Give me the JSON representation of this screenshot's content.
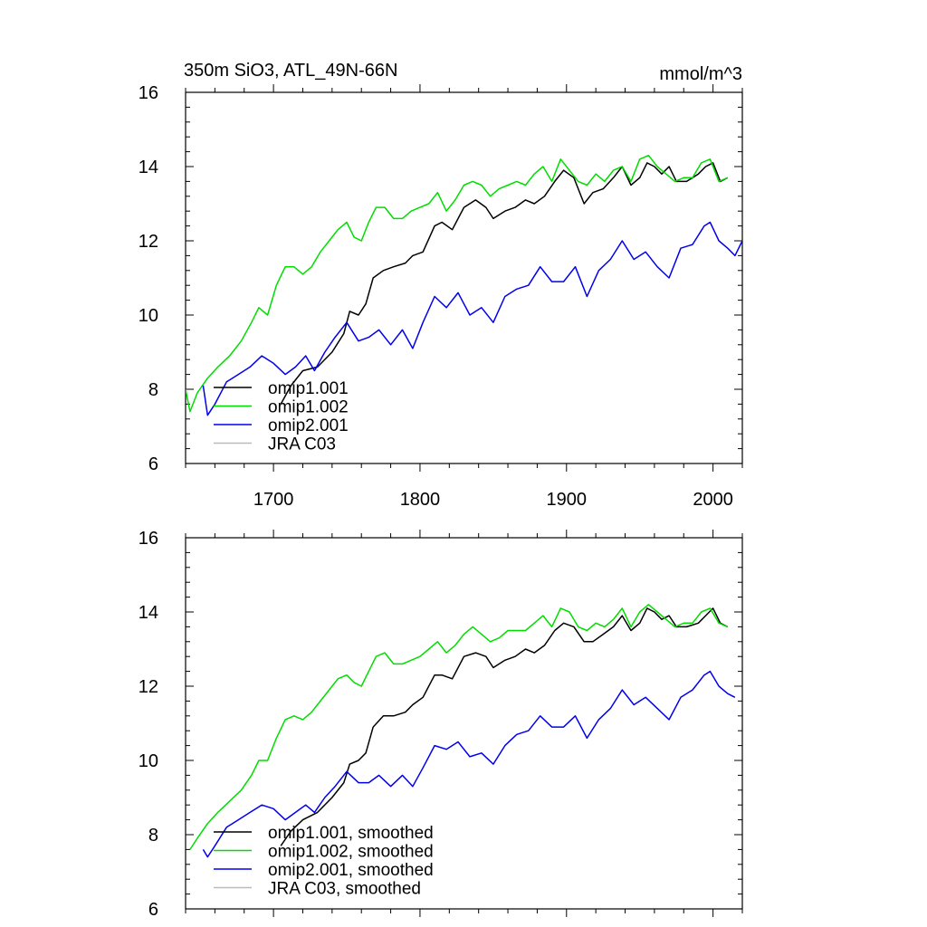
{
  "chart_data": [
    {
      "type": "line",
      "title": "350m SiO3, ATL_49N-66N",
      "units": "mmol/m^3",
      "xlim": [
        1640,
        2020
      ],
      "ylim": [
        6,
        16
      ],
      "x_ticks": [
        1700,
        1800,
        1900,
        2000
      ],
      "y_ticks": [
        6,
        8,
        10,
        12,
        14,
        16
      ],
      "legend_position": "bottom-left",
      "series": [
        {
          "name": "omip1.001",
          "color": "#000000",
          "x": [
            1705,
            1712,
            1720,
            1730,
            1740,
            1748,
            1752,
            1758,
            1763,
            1768,
            1775,
            1782,
            1790,
            1795,
            1802,
            1810,
            1815,
            1822,
            1830,
            1838,
            1845,
            1850,
            1858,
            1865,
            1872,
            1878,
            1885,
            1892,
            1898,
            1905,
            1912,
            1918,
            1925,
            1932,
            1938,
            1944,
            1950,
            1955,
            1960,
            1965,
            1970,
            1975,
            1982,
            1990,
            1995,
            2000,
            2005,
            2010
          ],
          "y": [
            7.6,
            8.1,
            8.5,
            8.6,
            9.0,
            9.5,
            10.1,
            10.0,
            10.3,
            11.0,
            11.2,
            11.3,
            11.4,
            11.6,
            11.7,
            12.4,
            12.5,
            12.3,
            12.9,
            13.1,
            12.9,
            12.6,
            12.8,
            12.9,
            13.1,
            13.0,
            13.2,
            13.6,
            13.9,
            13.7,
            13.0,
            13.3,
            13.4,
            13.7,
            14.0,
            13.5,
            13.7,
            14.1,
            14.0,
            13.8,
            14.0,
            13.6,
            13.6,
            13.8,
            14.0,
            14.1,
            13.6,
            13.7
          ]
        },
        {
          "name": "omip1.002",
          "color": "#00dd00",
          "x": [
            1640,
            1643,
            1648,
            1655,
            1662,
            1670,
            1678,
            1685,
            1690,
            1696,
            1702,
            1708,
            1714,
            1720,
            1726,
            1732,
            1738,
            1744,
            1750,
            1755,
            1760,
            1765,
            1770,
            1776,
            1782,
            1788,
            1794,
            1800,
            1806,
            1812,
            1818,
            1824,
            1830,
            1836,
            1842,
            1848,
            1854,
            1860,
            1866,
            1872,
            1878,
            1884,
            1890,
            1896,
            1902,
            1908,
            1914,
            1920,
            1926,
            1932,
            1938,
            1944,
            1950,
            1956,
            1962,
            1968,
            1974,
            1980,
            1986,
            1992,
            1998,
            2004,
            2010
          ],
          "y": [
            8.0,
            7.4,
            7.9,
            8.3,
            8.6,
            8.9,
            9.3,
            9.8,
            10.2,
            10.0,
            10.8,
            11.3,
            11.3,
            11.1,
            11.3,
            11.7,
            12.0,
            12.3,
            12.5,
            12.1,
            12.0,
            12.5,
            12.9,
            12.9,
            12.6,
            12.6,
            12.8,
            12.9,
            13.0,
            13.3,
            12.8,
            13.1,
            13.5,
            13.6,
            13.5,
            13.2,
            13.4,
            13.5,
            13.6,
            13.5,
            13.8,
            14.0,
            13.6,
            14.2,
            13.9,
            13.6,
            13.5,
            13.8,
            13.6,
            13.9,
            14.0,
            13.6,
            14.2,
            14.3,
            14.0,
            13.8,
            13.6,
            13.7,
            13.7,
            14.1,
            14.2,
            13.6,
            13.7
          ]
        },
        {
          "name": "omip2.001",
          "color": "#0000ee",
          "x": [
            1652,
            1655,
            1660,
            1668,
            1676,
            1684,
            1692,
            1700,
            1708,
            1715,
            1722,
            1728,
            1735,
            1742,
            1750,
            1758,
            1765,
            1772,
            1780,
            1788,
            1795,
            1802,
            1810,
            1818,
            1826,
            1834,
            1842,
            1850,
            1858,
            1866,
            1874,
            1882,
            1890,
            1898,
            1906,
            1914,
            1922,
            1930,
            1938,
            1946,
            1954,
            1962,
            1970,
            1978,
            1986,
            1994,
            1998,
            2004,
            2010,
            2015,
            2020
          ],
          "y": [
            8.1,
            7.3,
            7.6,
            8.2,
            8.4,
            8.6,
            8.9,
            8.7,
            8.4,
            8.6,
            8.9,
            8.5,
            9.0,
            9.4,
            9.8,
            9.3,
            9.4,
            9.6,
            9.2,
            9.6,
            9.1,
            9.8,
            10.5,
            10.2,
            10.6,
            10.0,
            10.2,
            9.8,
            10.5,
            10.7,
            10.8,
            11.3,
            10.9,
            10.9,
            11.3,
            10.5,
            11.2,
            11.5,
            12.0,
            11.5,
            11.7,
            11.3,
            11.0,
            11.8,
            11.9,
            12.4,
            12.5,
            12.0,
            11.8,
            11.6,
            12.0
          ]
        },
        {
          "name": "JRA C03",
          "color": "#bbbbbb",
          "x": [],
          "y": []
        }
      ]
    },
    {
      "type": "line",
      "xlim": [
        1640,
        2020
      ],
      "ylim": [
        6,
        16
      ],
      "y_ticks": [
        6,
        8,
        10,
        12,
        14,
        16
      ],
      "legend_position": "bottom-left",
      "series": [
        {
          "name": "omip1.001, smoothed",
          "color": "#000000",
          "x": [
            1705,
            1712,
            1720,
            1730,
            1740,
            1748,
            1752,
            1758,
            1763,
            1768,
            1775,
            1782,
            1790,
            1795,
            1802,
            1810,
            1815,
            1822,
            1830,
            1838,
            1845,
            1850,
            1858,
            1865,
            1872,
            1878,
            1885,
            1892,
            1898,
            1905,
            1912,
            1918,
            1925,
            1932,
            1938,
            1944,
            1950,
            1955,
            1960,
            1965,
            1970,
            1975,
            1982,
            1990,
            1995,
            2000,
            2005,
            2010
          ],
          "y": [
            7.7,
            8.1,
            8.4,
            8.6,
            9.0,
            9.4,
            9.9,
            10.0,
            10.2,
            10.9,
            11.2,
            11.2,
            11.3,
            11.5,
            11.7,
            12.3,
            12.3,
            12.2,
            12.8,
            12.9,
            12.8,
            12.5,
            12.7,
            12.8,
            13.0,
            12.9,
            13.1,
            13.5,
            13.7,
            13.6,
            13.2,
            13.2,
            13.4,
            13.6,
            13.9,
            13.5,
            13.7,
            14.1,
            14.0,
            13.8,
            13.9,
            13.6,
            13.6,
            13.7,
            13.9,
            14.1,
            13.7,
            13.6
          ]
        },
        {
          "name": "omip1.002, smoothed",
          "color": "#00dd00",
          "x": [
            1643,
            1648,
            1655,
            1662,
            1670,
            1678,
            1685,
            1690,
            1696,
            1702,
            1708,
            1714,
            1720,
            1726,
            1732,
            1738,
            1744,
            1750,
            1755,
            1760,
            1765,
            1770,
            1776,
            1782,
            1788,
            1794,
            1800,
            1806,
            1812,
            1818,
            1824,
            1830,
            1836,
            1842,
            1848,
            1854,
            1860,
            1866,
            1872,
            1878,
            1884,
            1890,
            1896,
            1902,
            1908,
            1914,
            1920,
            1926,
            1932,
            1938,
            1944,
            1950,
            1956,
            1962,
            1968,
            1974,
            1980,
            1986,
            1992,
            1998,
            2004,
            2010
          ],
          "y": [
            7.6,
            7.9,
            8.3,
            8.6,
            8.9,
            9.2,
            9.6,
            10.0,
            10.0,
            10.6,
            11.1,
            11.2,
            11.1,
            11.3,
            11.6,
            11.9,
            12.2,
            12.3,
            12.1,
            12.0,
            12.4,
            12.8,
            12.9,
            12.6,
            12.6,
            12.7,
            12.8,
            13.0,
            13.2,
            12.9,
            13.1,
            13.4,
            13.6,
            13.4,
            13.2,
            13.3,
            13.5,
            13.5,
            13.5,
            13.7,
            13.9,
            13.6,
            14.1,
            14.0,
            13.6,
            13.5,
            13.7,
            13.6,
            13.8,
            14.1,
            13.6,
            14.0,
            14.2,
            14.0,
            13.8,
            13.6,
            13.7,
            13.7,
            14.0,
            14.1,
            13.7,
            13.6
          ]
        },
        {
          "name": "omip2.001, smoothed",
          "color": "#0000ee",
          "x": [
            1652,
            1655,
            1660,
            1668,
            1676,
            1684,
            1692,
            1700,
            1708,
            1715,
            1722,
            1728,
            1735,
            1742,
            1750,
            1758,
            1765,
            1772,
            1780,
            1788,
            1795,
            1802,
            1810,
            1818,
            1826,
            1834,
            1842,
            1850,
            1858,
            1866,
            1874,
            1882,
            1890,
            1898,
            1906,
            1914,
            1922,
            1930,
            1938,
            1946,
            1954,
            1962,
            1970,
            1978,
            1986,
            1994,
            1998,
            2004,
            2010,
            2015
          ],
          "y": [
            7.6,
            7.4,
            7.7,
            8.2,
            8.4,
            8.6,
            8.8,
            8.7,
            8.4,
            8.6,
            8.8,
            8.6,
            9.0,
            9.3,
            9.7,
            9.4,
            9.4,
            9.6,
            9.3,
            9.6,
            9.3,
            9.8,
            10.4,
            10.3,
            10.5,
            10.1,
            10.2,
            9.9,
            10.4,
            10.7,
            10.8,
            11.2,
            10.9,
            10.9,
            11.2,
            10.6,
            11.1,
            11.4,
            11.9,
            11.5,
            11.7,
            11.4,
            11.1,
            11.7,
            11.9,
            12.3,
            12.4,
            12.0,
            11.8,
            11.7
          ]
        },
        {
          "name": "JRA C03, smoothed",
          "color": "#bbbbbb",
          "x": [],
          "y": []
        }
      ]
    }
  ]
}
